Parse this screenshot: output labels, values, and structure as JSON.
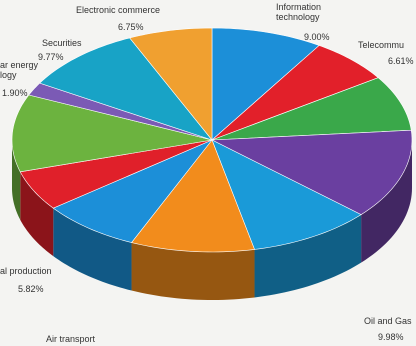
{
  "chart_data": {
    "type": "pie3d",
    "categories": [
      "Information technology",
      "Telecommu",
      null,
      null,
      "Oil and Gas",
      null,
      "Air transport",
      "al production",
      null,
      "ar energy logy",
      "Securities",
      "Electronic commerce"
    ],
    "values": [
      9.0,
      6.61,
      8,
      13,
      9.98,
      10,
      8,
      5.82,
      11.17,
      1.9,
      9.77,
      6.75
    ],
    "value_labels": [
      "9.00%",
      "6.61%",
      null,
      null,
      "9.98%",
      null,
      null,
      "5.82%",
      null,
      "1.90%",
      "9.77%",
      "6.75%"
    ],
    "colors": [
      "#1c8fd8",
      "#e2202a",
      "#3aa84a",
      "#6a3fa0",
      "#1a9ad8",
      "#f28c1c",
      "#1c8fd8",
      "#e0202a",
      "#6cb33f",
      "#7b5ab5",
      "#18a3c6",
      "#f0a030"
    ]
  }
}
